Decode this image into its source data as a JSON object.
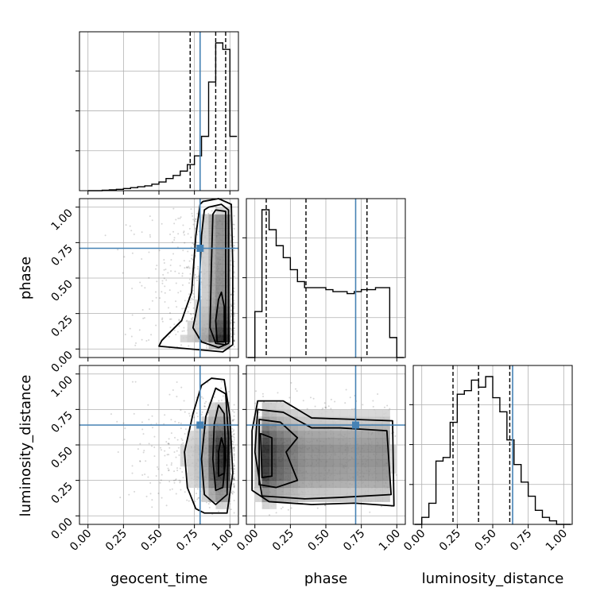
{
  "chart_data": {
    "type": "corner",
    "parameters": [
      "geocent_time",
      "phase",
      "luminosity_distance"
    ],
    "truth": {
      "geocent_time": 0.79,
      "phase": 0.71,
      "luminosity_distance": 0.64
    },
    "quantiles": {
      "geocent_time": [
        0.72,
        0.9,
        0.97
      ],
      "phase": [
        0.08,
        0.36,
        0.79
      ],
      "luminosity_distance": [
        0.22,
        0.4,
        0.62
      ]
    },
    "ticks": [
      0.0,
      0.25,
      0.5,
      0.75,
      1.0
    ],
    "tick_labels": [
      "0.00",
      "0.25",
      "0.50",
      "0.75",
      "1.00"
    ],
    "axis_range": [
      -0.06,
      1.06
    ],
    "grid": true,
    "truth_color": "#4682b4",
    "histograms": {
      "geocent_time": {
        "bin_edges": [
          0.0,
          0.05,
          0.1,
          0.15,
          0.2,
          0.25,
          0.3,
          0.35,
          0.4,
          0.45,
          0.5,
          0.55,
          0.6,
          0.65,
          0.7,
          0.75,
          0.8,
          0.85,
          0.9,
          0.95,
          1.0,
          1.05
        ],
        "counts": [
          0,
          0,
          1,
          2,
          3,
          5,
          7,
          9,
          11,
          15,
          20,
          28,
          35,
          45,
          60,
          80,
          125,
          250,
          340,
          325,
          125
        ]
      },
      "phase": {
        "bin_edges": [
          -0.05,
          0.0,
          0.05,
          0.1,
          0.15,
          0.2,
          0.25,
          0.3,
          0.35,
          0.4,
          0.45,
          0.5,
          0.55,
          0.6,
          0.65,
          0.7,
          0.75,
          0.8,
          0.85,
          0.9,
          0.95,
          1.0,
          1.05
        ],
        "counts": [
          0,
          23,
          74,
          64,
          56,
          50,
          44,
          38,
          35,
          35,
          35,
          34,
          33,
          33,
          32,
          33,
          34,
          34,
          35,
          35,
          10,
          0
        ]
      },
      "luminosity_distance": {
        "bin_edges": [
          -0.05,
          0.0,
          0.05,
          0.1,
          0.15,
          0.2,
          0.25,
          0.3,
          0.35,
          0.4,
          0.45,
          0.5,
          0.55,
          0.6,
          0.65,
          0.7,
          0.75,
          0.8,
          0.85,
          0.9,
          0.95,
          1.0,
          1.05
        ],
        "counts": [
          0,
          2,
          6,
          18,
          19,
          29,
          37,
          38,
          41,
          39,
          42,
          36,
          32,
          24,
          17,
          12,
          8,
          4,
          2,
          1,
          0,
          0
        ]
      }
    }
  }
}
